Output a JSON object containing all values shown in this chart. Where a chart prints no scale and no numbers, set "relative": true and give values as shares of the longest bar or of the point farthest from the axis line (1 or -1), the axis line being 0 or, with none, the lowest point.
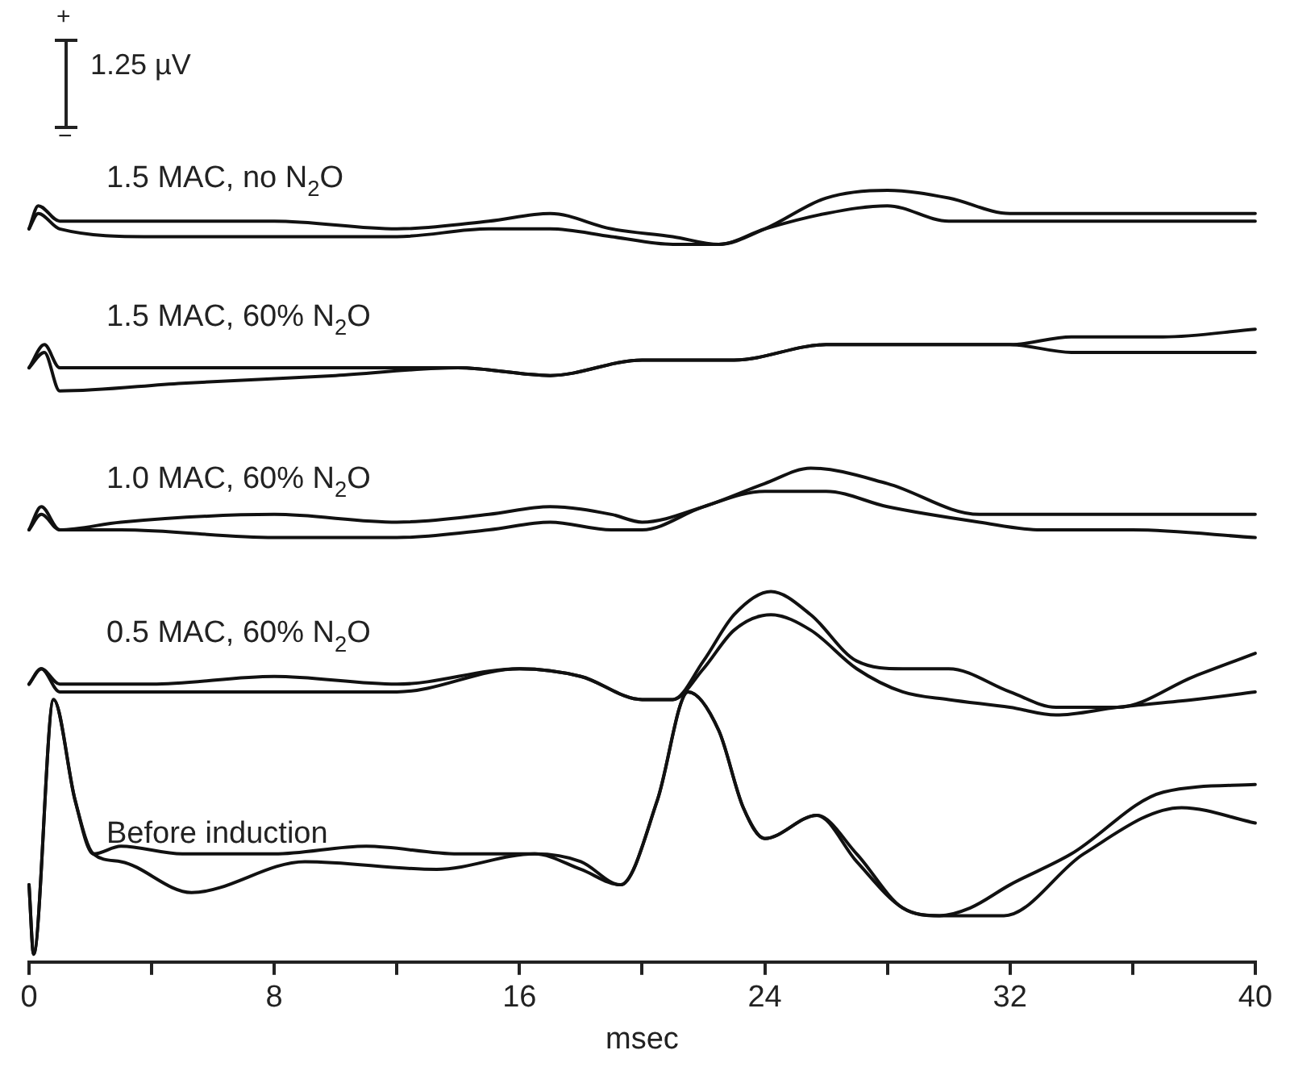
{
  "chart_data": {
    "type": "line",
    "xlabel": "msec",
    "relative": true,
    "xlim": [
      0,
      40
    ],
    "xticks": [
      0,
      {
        "value": 4,
        "label": null
      },
      8,
      {
        "value": 12,
        "label": null
      },
      16,
      {
        "value": 20,
        "label": null
      },
      24,
      {
        "value": 28,
        "label": null
      },
      32,
      {
        "value": 36,
        "label": null
      },
      40
    ],
    "grid": false,
    "legend": false,
    "marker": "none",
    "line_style": "solid",
    "annotations": [
      "+",
      "1.25 µV",
      "−"
    ],
    "series": [
      {
        "name": "1.5 MAC, no N$_{2}$O",
        "color": "#111111",
        "x": [
          0,
          0.3,
          1,
          4,
          8,
          12,
          15,
          17,
          19,
          21,
          22.5,
          24,
          26,
          28,
          30,
          32,
          36,
          40
        ],
        "values": [
          0.95,
          0.98,
          0.96,
          0.96,
          0.96,
          0.95,
          0.96,
          0.97,
          0.95,
          0.94,
          0.93,
          0.95,
          0.99,
          1,
          0.99,
          0.97,
          0.97,
          0.97
        ]
      },
      {
        "color": "#111111",
        "x": [
          0,
          0.3,
          1,
          4,
          8,
          12,
          15,
          17,
          19,
          21,
          22.5,
          24,
          26,
          28,
          30,
          32,
          36,
          40
        ],
        "values": [
          0.95,
          0.97,
          0.95,
          0.94,
          0.94,
          0.94,
          0.95,
          0.95,
          0.94,
          0.93,
          0.93,
          0.95,
          0.97,
          0.98,
          0.96,
          0.96,
          0.96,
          0.96
        ]
      },
      {
        "name": "1.5 MAC, 60% N$_{2}$O",
        "color": "#111111",
        "x": [
          0,
          0.5,
          1,
          5,
          10,
          14,
          17,
          20,
          23,
          26,
          29,
          32,
          34,
          37,
          40
        ],
        "values": [
          0.77,
          0.8,
          0.77,
          0.77,
          0.77,
          0.77,
          0.76,
          0.78,
          0.78,
          0.8,
          0.8,
          0.8,
          0.81,
          0.81,
          0.82
        ]
      },
      {
        "color": "#111111",
        "x": [
          0,
          0.5,
          1,
          5,
          10,
          14,
          17,
          20,
          23,
          26,
          29,
          32,
          34,
          37,
          40
        ],
        "values": [
          0.77,
          0.79,
          0.74,
          0.75,
          0.76,
          0.77,
          0.76,
          0.78,
          0.78,
          0.8,
          0.8,
          0.8,
          0.79,
          0.79,
          0.79
        ]
      },
      {
        "name": "1.0 MAC, 60% N$_{2}$O",
        "color": "#111111",
        "x": [
          0,
          0.4,
          1,
          3,
          8,
          12,
          15,
          17,
          19,
          20,
          22,
          24,
          25.5,
          28,
          31,
          33,
          36,
          40
        ],
        "values": [
          0.56,
          0.59,
          0.56,
          0.57,
          0.58,
          0.57,
          0.58,
          0.59,
          0.58,
          0.57,
          0.59,
          0.62,
          0.64,
          0.62,
          0.58,
          0.58,
          0.58,
          0.58
        ]
      },
      {
        "color": "#111111",
        "x": [
          0,
          0.4,
          1,
          3,
          8,
          12,
          15,
          17,
          19,
          20,
          22,
          24,
          26,
          28,
          31,
          33,
          36,
          40
        ],
        "values": [
          0.56,
          0.58,
          0.56,
          0.56,
          0.55,
          0.55,
          0.56,
          0.57,
          0.56,
          0.56,
          0.59,
          0.61,
          0.61,
          0.59,
          0.57,
          0.56,
          0.56,
          0.55
        ]
      },
      {
        "name": "0.5 MAC, 60% N$_{2}$O",
        "color": "#111111",
        "x": [
          0,
          0.4,
          1,
          4,
          8,
          12,
          16,
          18,
          20,
          21,
          22,
          23,
          24.2,
          25.5,
          27,
          28.5,
          30,
          32,
          33.5,
          35.5,
          38,
          40
        ],
        "values": [
          0.36,
          0.38,
          0.36,
          0.36,
          0.37,
          0.36,
          0.38,
          0.37,
          0.34,
          0.34,
          0.39,
          0.45,
          0.48,
          0.45,
          0.39,
          0.38,
          0.38,
          0.35,
          0.33,
          0.33,
          0.37,
          0.4
        ]
      },
      {
        "color": "#111111",
        "x": [
          0,
          0.4,
          1,
          4,
          8,
          12,
          16,
          18,
          20,
          21,
          22,
          23,
          24.2,
          25.5,
          27,
          28.5,
          30,
          32,
          33.5,
          35.5,
          38,
          40
        ],
        "values": [
          0.36,
          0.38,
          0.35,
          0.35,
          0.35,
          0.35,
          0.38,
          0.37,
          0.34,
          0.34,
          0.38,
          0.43,
          0.45,
          0.43,
          0.38,
          0.35,
          0.34,
          0.33,
          0.32,
          0.33,
          0.34,
          0.35
        ]
      },
      {
        "name": "Before induction",
        "color": "#111111",
        "x": [
          0,
          0.15,
          0.8,
          1.5,
          2.1,
          3,
          5,
          8,
          11,
          14,
          16.5,
          18,
          19.3,
          20.5,
          21.5,
          22.5,
          23.3,
          24,
          25.7,
          27,
          28.5,
          29.7,
          30.7,
          32,
          34,
          37,
          40
        ],
        "values": [
          0.1,
          0.01,
          0.34,
          0.21,
          0.14,
          0.15,
          0.14,
          0.14,
          0.15,
          0.14,
          0.14,
          0.13,
          0.1,
          0.21,
          0.35,
          0.3,
          0.2,
          0.16,
          0.19,
          0.14,
          0.07,
          0.06,
          0.07,
          0.1,
          0.14,
          0.22,
          0.23
        ]
      },
      {
        "color": "#111111",
        "x": [
          0,
          0.15,
          0.8,
          1.5,
          2.1,
          3,
          5.3,
          9,
          13.3,
          16.5,
          18,
          19.3,
          20.5,
          21.5,
          22.5,
          23.3,
          24,
          25.7,
          27,
          28.5,
          29.7,
          31.8,
          34.4,
          37.6,
          40
        ],
        "values": [
          0.1,
          0.01,
          0.34,
          0.21,
          0.14,
          0.13,
          0.09,
          0.13,
          0.12,
          0.14,
          0.12,
          0.1,
          0.21,
          0.35,
          0.3,
          0.2,
          0.16,
          0.19,
          0.13,
          0.07,
          0.06,
          0.06,
          0.14,
          0.2,
          0.18
        ]
      }
    ]
  }
}
